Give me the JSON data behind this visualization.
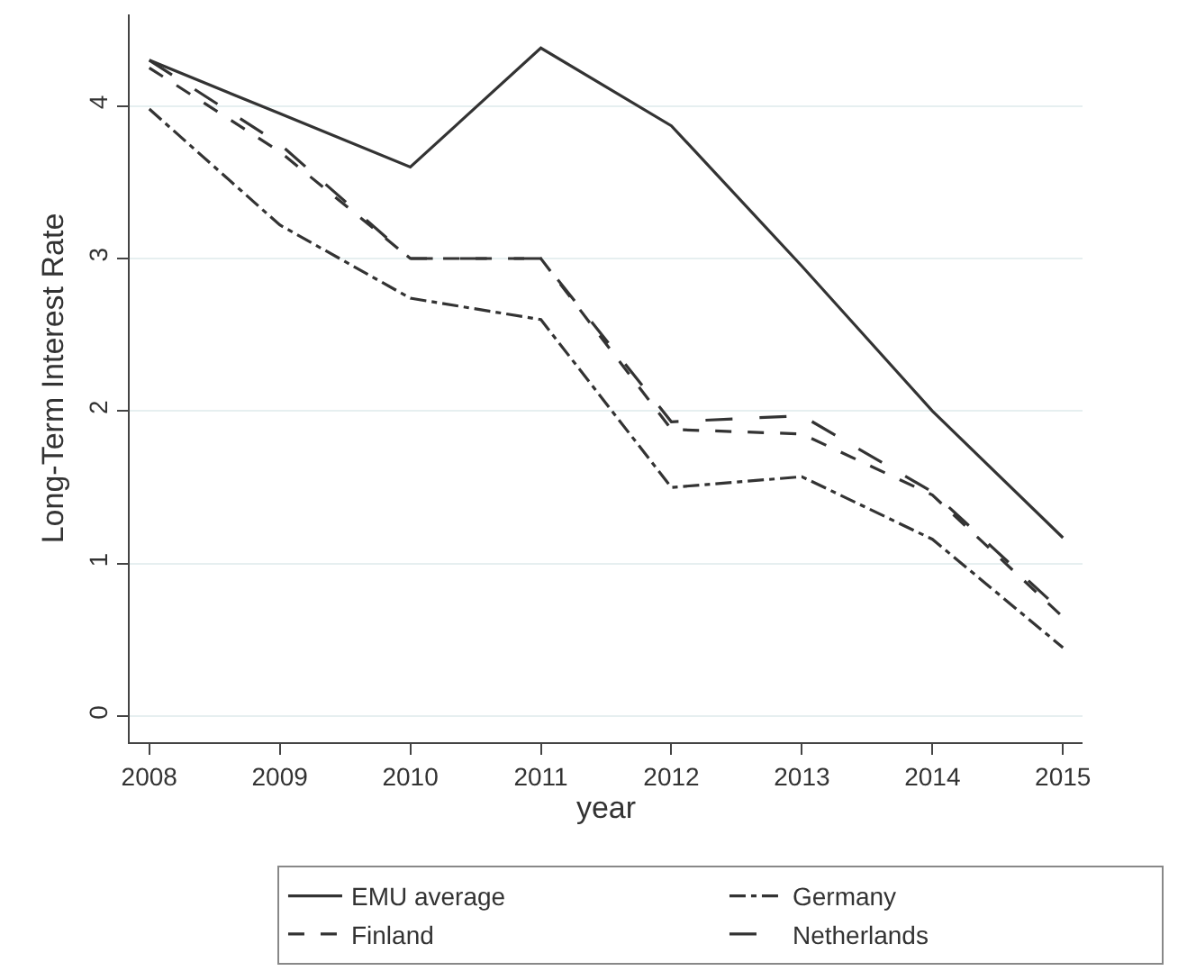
{
  "chart_data": {
    "type": "line",
    "xlabel": "year",
    "ylabel": "Long-Term Interest Rate",
    "x": [
      2008,
      2009,
      2010,
      2011,
      2012,
      2013,
      2014,
      2015
    ],
    "series": [
      {
        "name": "EMU average",
        "color": "#333333",
        "line_style": "solid",
        "values": [
          4.3,
          3.95,
          3.6,
          4.38,
          3.87,
          2.95,
          2.0,
          1.17
        ]
      },
      {
        "name": "Germany",
        "color": "#333333",
        "line_style": "dashdot",
        "values": [
          3.98,
          3.22,
          2.74,
          2.6,
          1.5,
          1.57,
          1.16,
          0.45
        ]
      },
      {
        "name": "Finland",
        "color": "#333333",
        "line_style": "dashed",
        "values": [
          4.25,
          3.7,
          3.0,
          3.0,
          1.88,
          1.85,
          1.45,
          0.65
        ]
      },
      {
        "name": "Netherlands",
        "color": "#333333",
        "line_style": "longdash",
        "values": [
          4.3,
          3.75,
          3.0,
          3.0,
          1.93,
          1.97,
          1.47,
          0.68
        ]
      }
    ],
    "xlim": [
      2007.85,
      2015.15
    ],
    "xticks": [
      2008,
      2009,
      2010,
      2011,
      2012,
      2013,
      2014,
      2015
    ],
    "ylim": [
      -0.17,
      4.6
    ],
    "yticks": [
      0,
      1,
      2,
      3,
      4
    ],
    "grid": "y",
    "legend": "bottom",
    "marker": "none"
  }
}
